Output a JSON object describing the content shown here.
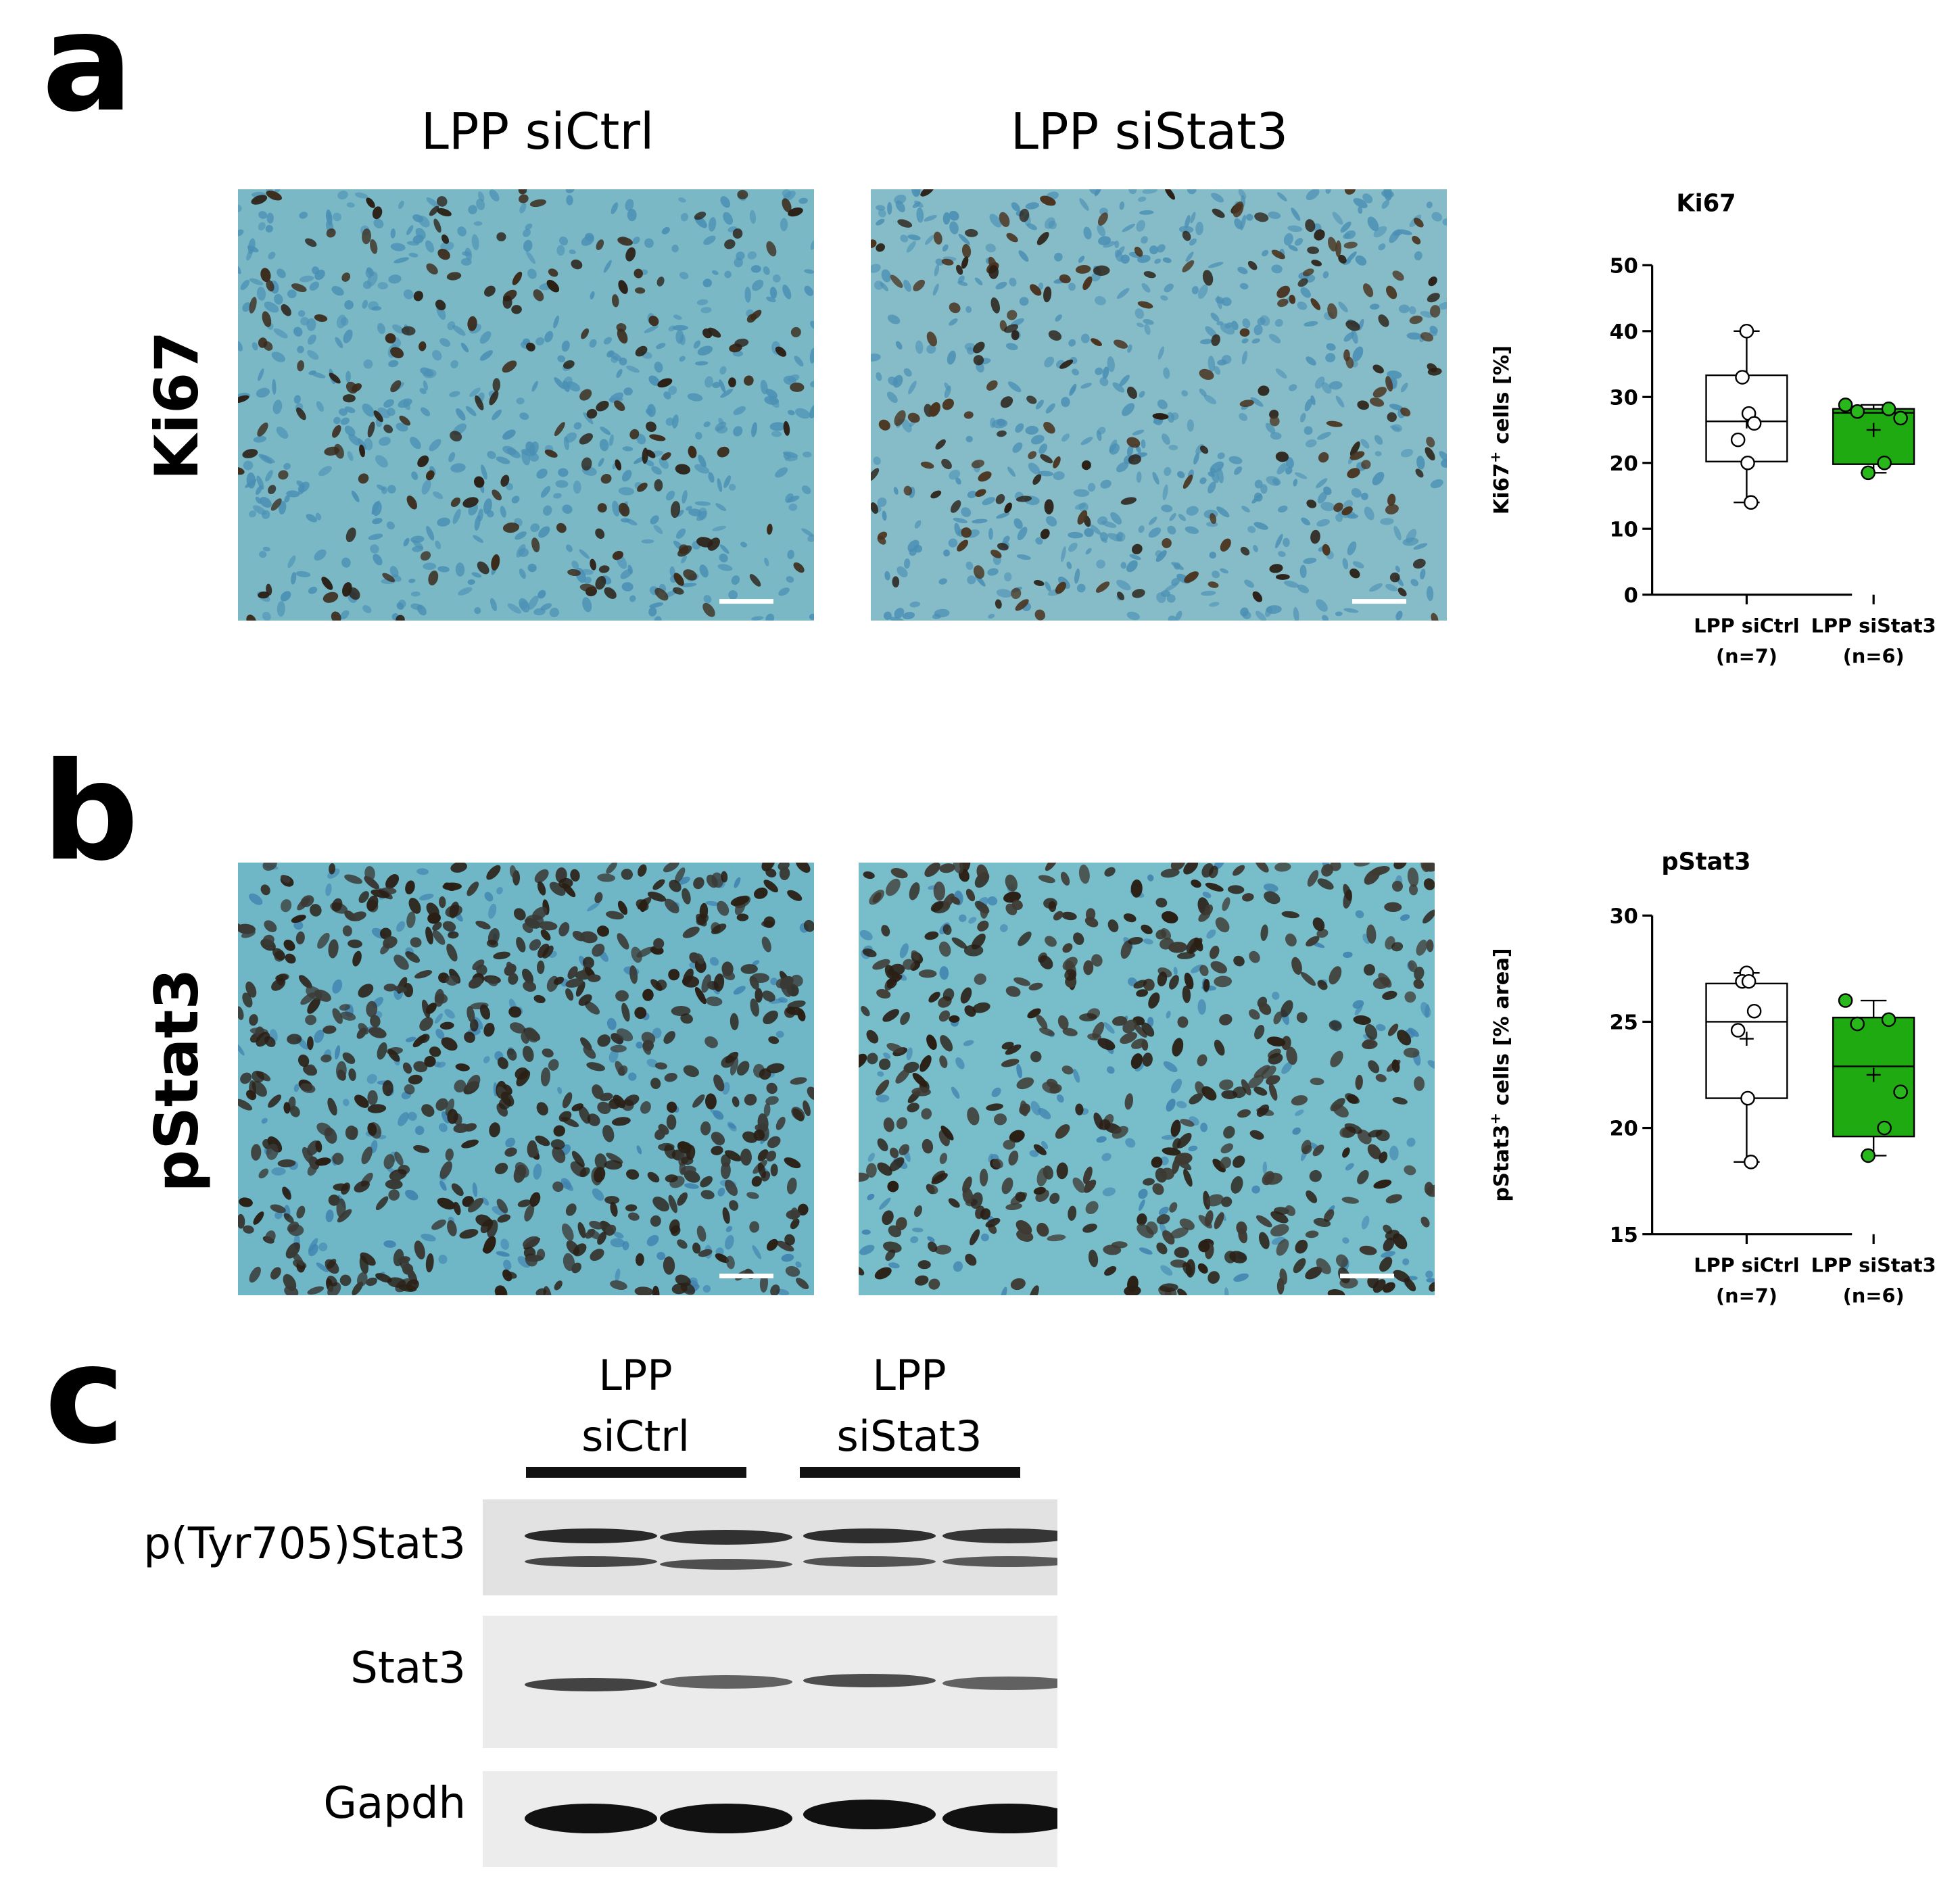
{
  "figure": {
    "panel_a": {
      "letter": "a",
      "condition_left": "LPP siCtrl",
      "condition_right": "LPP siStat3",
      "row_label": "Ki67"
    },
    "panel_b": {
      "letter": "b",
      "row_label": "pStat3"
    },
    "panel_c": {
      "letter": "c",
      "group_left": [
        "LPP",
        "siCtrl"
      ],
      "group_right": [
        "LPP",
        "siStat3"
      ],
      "blots": [
        {
          "label": "p(Tyr705)Stat3"
        },
        {
          "label": "Stat3"
        },
        {
          "label": "Gapdh"
        }
      ]
    },
    "colors": {
      "tissue": "#7ab8c6",
      "stain_brown": "#3b2a1a",
      "box_green": "#1faa12",
      "marker_green": "#28b81c"
    }
  },
  "chart_data": [
    {
      "type": "box",
      "title": "Ki67",
      "ylabel_main": "Ki67",
      "ylabel_sup": "+",
      "ylabel_rest": " cells [%]",
      "ylim": [
        0,
        50
      ],
      "yticks": [
        "0",
        "10",
        "20",
        "30",
        "40",
        "50"
      ],
      "categories": [
        {
          "name": "LPP siCtrl",
          "n": "(n=7)"
        },
        {
          "name": "LPP siStat3",
          "n": "(n=6)"
        }
      ],
      "series": [
        {
          "points": [
            40,
            33,
            27.5,
            26,
            23.5,
            20,
            14
          ],
          "min": 14,
          "q1": 20.2,
          "median": 26.3,
          "q3": 33.3,
          "max": 40,
          "mean": 26.3,
          "fill": "#ffffff",
          "marker": "open"
        },
        {
          "points": [
            28.8,
            28.2,
            27.8,
            26.8,
            20,
            18.5
          ],
          "min": 18.5,
          "q1": 19.8,
          "median": 27.6,
          "q3": 28.2,
          "max": 28.8,
          "mean": 25,
          "fill": "#1faa12",
          "marker": "filled"
        }
      ]
    },
    {
      "type": "box",
      "title": "pStat3",
      "ylabel_main": "pStat3",
      "ylabel_sup": "+",
      "ylabel_rest": " cells [% area]",
      "ylim": [
        15,
        30
      ],
      "yticks": [
        "15",
        "20",
        "25",
        "30"
      ],
      "categories": [
        {
          "name": "LPP siCtrl",
          "n": "(n=7)"
        },
        {
          "name": "LPP siStat3",
          "n": "(n=6)"
        }
      ],
      "series": [
        {
          "points": [
            27.3,
            26.9,
            26.9,
            25.5,
            24.6,
            21.4,
            18.4
          ],
          "min": 18.4,
          "q1": 21.4,
          "median": 25,
          "q3": 26.8,
          "max": 27.3,
          "mean": 24.2,
          "fill": "#ffffff",
          "marker": "open"
        },
        {
          "points": [
            26,
            25.1,
            24.9,
            21.7,
            20,
            18.7
          ],
          "min": 18.7,
          "q1": 19.6,
          "median": 22.9,
          "q3": 25.2,
          "max": 26,
          "mean": 22.5,
          "fill": "#1faa12",
          "marker": "filled"
        }
      ]
    }
  ]
}
